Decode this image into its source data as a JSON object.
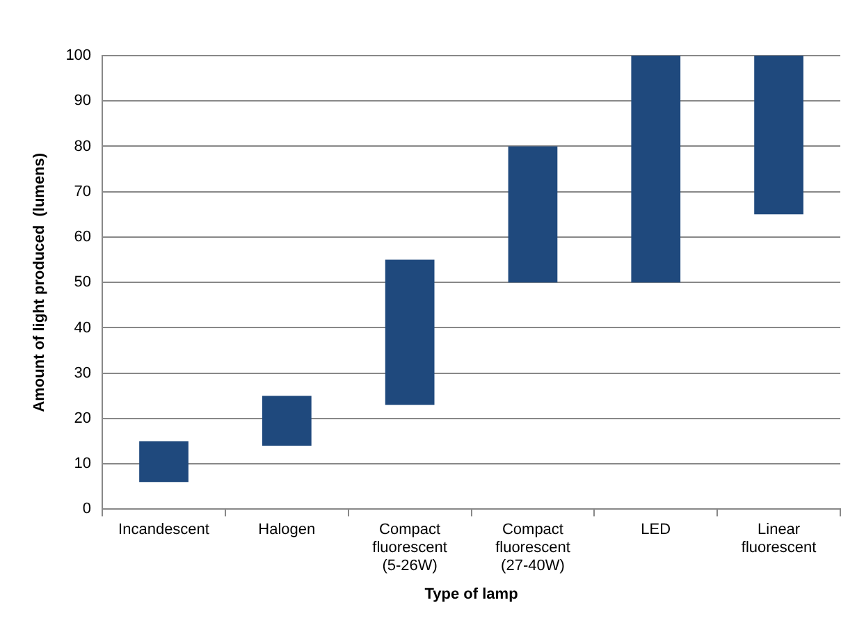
{
  "chart_data": {
    "type": "bar",
    "xlabel": "Type of lamp",
    "ylabel": "Amount of light produced  (lumens)",
    "categories": [
      "Incandescent",
      "Halogen",
      "Compact fluorescent (5-26W)",
      "Compact fluorescent (27-40W)",
      "LED",
      "Linear fluorescent"
    ],
    "base": [
      6,
      14,
      23,
      50,
      50,
      65
    ],
    "values": [
      9,
      11,
      32,
      30,
      50,
      35
    ],
    "color": "#1f497d",
    "ylim": [
      0,
      100
    ],
    "yticks": [
      0,
      10,
      20,
      30,
      40,
      50,
      60,
      70,
      80,
      90,
      100
    ],
    "grid": "y",
    "legend": false
  }
}
